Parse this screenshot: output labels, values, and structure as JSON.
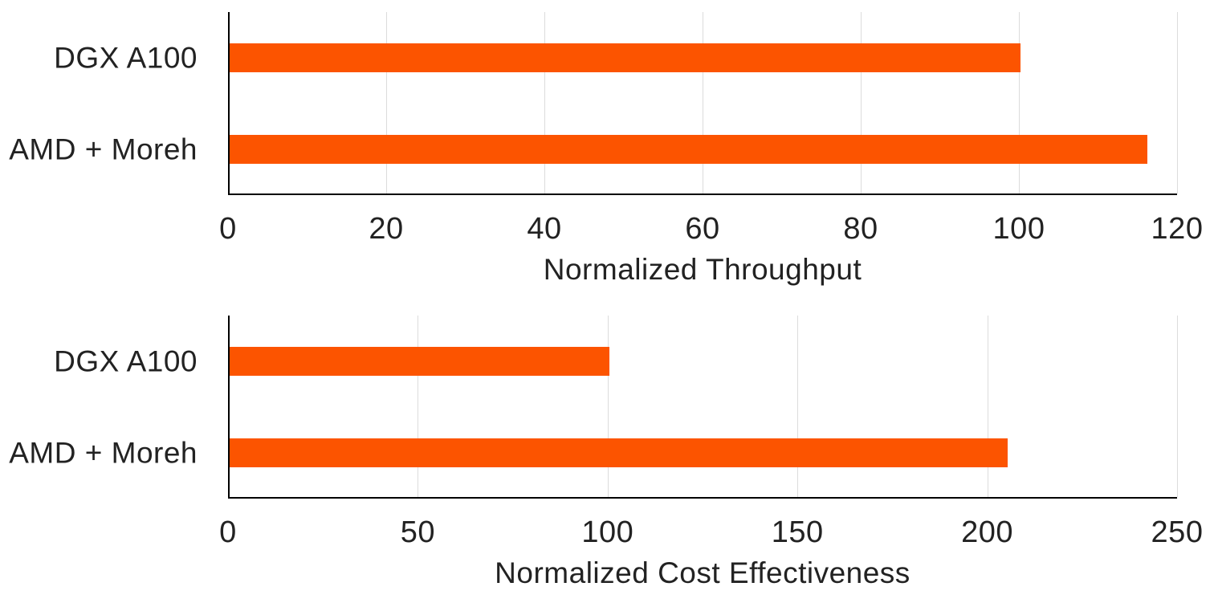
{
  "colors": {
    "bar": "#FC5400",
    "axis": "#000000",
    "gridline": "#DCDCDC",
    "text": "#222222",
    "background": "#FFFFFF"
  },
  "chart_data": [
    {
      "type": "bar",
      "orientation": "horizontal",
      "title": "",
      "xlabel": "Normalized Throughput",
      "ylabel": "",
      "categories": [
        "DGX A100",
        "AMD + Moreh"
      ],
      "values": [
        100,
        116
      ],
      "xlim": [
        0,
        120
      ],
      "xticks": [
        0,
        20,
        40,
        60,
        80,
        100,
        120
      ],
      "grid": true,
      "legend": false
    },
    {
      "type": "bar",
      "orientation": "horizontal",
      "title": "",
      "xlabel": "Normalized Cost Effectiveness",
      "ylabel": "",
      "categories": [
        "DGX A100",
        "AMD + Moreh"
      ],
      "values": [
        100,
        205
      ],
      "xlim": [
        0,
        250
      ],
      "xticks": [
        0,
        50,
        100,
        150,
        200,
        250
      ],
      "grid": true,
      "legend": false
    }
  ]
}
